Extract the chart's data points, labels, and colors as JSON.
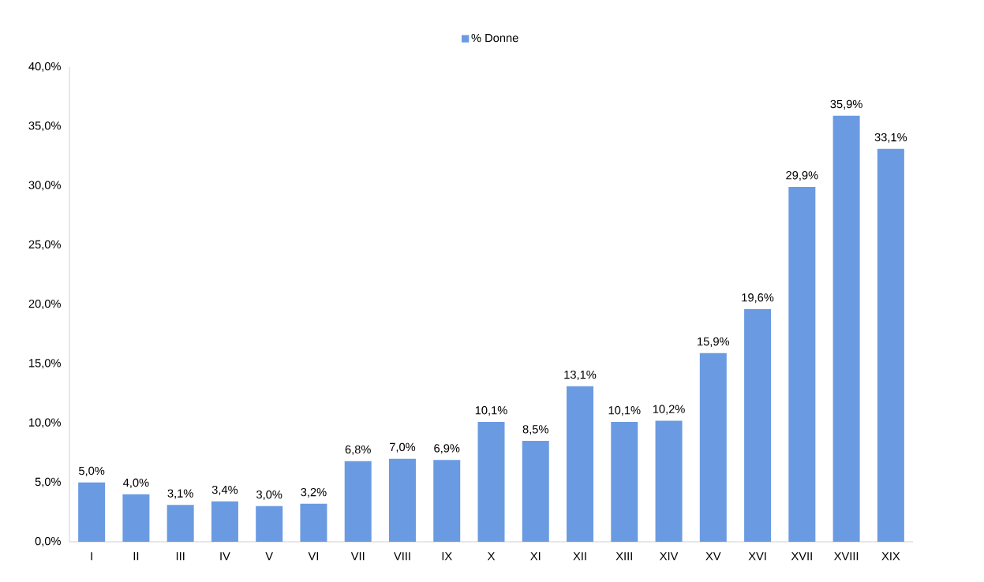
{
  "chart_data": {
    "type": "bar",
    "categories": [
      "I",
      "II",
      "III",
      "IV",
      "V",
      "VI",
      "VII",
      "VIII",
      "IX",
      "X",
      "XI",
      "XII",
      "XIII",
      "XIV",
      "XV",
      "XVI",
      "XVII",
      "XVIII",
      "XIX"
    ],
    "series": [
      {
        "name": "% Donne",
        "color": "#6a9be2",
        "values": [
          5.0,
          4.0,
          3.1,
          3.4,
          3.0,
          3.2,
          6.8,
          7.0,
          6.9,
          10.1,
          8.5,
          13.1,
          10.1,
          10.2,
          15.9,
          19.6,
          29.9,
          35.9,
          33.1
        ],
        "value_labels": [
          "5,0%",
          "4,0%",
          "3,1%",
          "3,4%",
          "3,0%",
          "3,2%",
          "6,8%",
          "7,0%",
          "6,9%",
          "10,1%",
          "8,5%",
          "13,1%",
          "10,1%",
          "10,2%",
          "15,9%",
          "19,6%",
          "29,9%",
          "35,9%",
          "33,1%"
        ]
      }
    ],
    "ylim": [
      0,
      40
    ],
    "yticks": [
      {
        "value": 0,
        "label": "0,0%"
      },
      {
        "value": 5,
        "label": "5,0%"
      },
      {
        "value": 10,
        "label": "10,0%"
      },
      {
        "value": 15,
        "label": "15,0%"
      },
      {
        "value": 20,
        "label": "20,0%"
      },
      {
        "value": 25,
        "label": "25,0%"
      },
      {
        "value": 30,
        "label": "30,0%"
      },
      {
        "value": 35,
        "label": "35,0%"
      },
      {
        "value": 40,
        "label": "40,0%"
      }
    ],
    "legend": "top"
  }
}
